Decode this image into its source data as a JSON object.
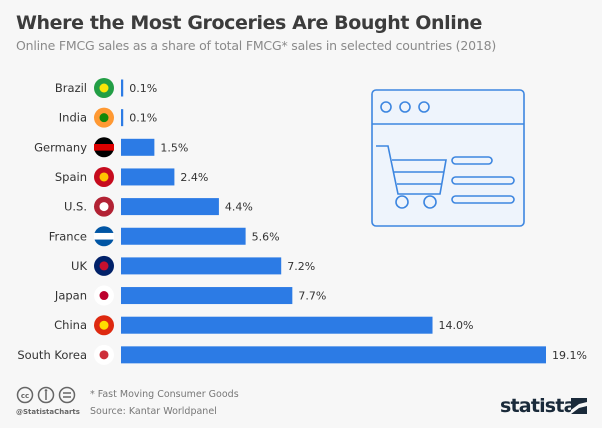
{
  "header": {
    "title": "Where the Most Groceries Are Bought Online",
    "subtitle": "Online FMCG sales as a share of total FMCG* sales in selected countries (2018)"
  },
  "chart_data": {
    "type": "bar",
    "orientation": "horizontal",
    "title": "Where the Most Groceries Are Bought Online",
    "categories": [
      "Brazil",
      "India",
      "Germany",
      "Spain",
      "U.S.",
      "France",
      "UK",
      "Japan",
      "China",
      "South Korea"
    ],
    "values": [
      0.1,
      0.1,
      1.5,
      2.4,
      4.4,
      5.6,
      7.2,
      7.7,
      14.0,
      19.1
    ],
    "value_labels": [
      "0.1%",
      "0.1%",
      "1.5%",
      "2.4%",
      "4.4%",
      "5.6%",
      "7.2%",
      "7.7%",
      "14.0%",
      "19.1%"
    ],
    "unit": "%",
    "xlim": [
      0,
      19.1
    ],
    "grid": false,
    "bar_color": "#2c7be5"
  },
  "footer": {
    "note": "* Fast Moving Consumer Goods",
    "source": "Source: Kantar Worldpanel",
    "handle": "@StatistaCharts",
    "logo": "statista"
  }
}
